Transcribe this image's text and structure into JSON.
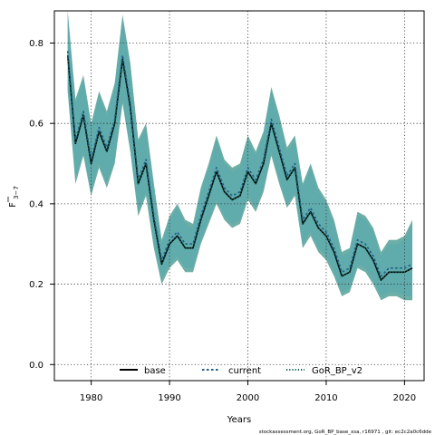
{
  "chart_data": {
    "type": "line",
    "title": "",
    "xlabel": "Years",
    "ylabel": "F",
    "ylabel_sub": "3−7",
    "xlim": [
      1975.3,
      2022.5
    ],
    "ylim": [
      -0.04,
      0.88
    ],
    "xticks": [
      1980,
      1990,
      2000,
      2010,
      2020
    ],
    "yticks": [
      0.0,
      0.2,
      0.4,
      0.6,
      0.8
    ],
    "ytick_labels": [
      "0.0",
      "0.2",
      "0.4",
      "0.6",
      "0.8"
    ],
    "grid": true,
    "legend_position": "bottom-center",
    "x": [
      1977,
      1978,
      1979,
      1980,
      1981,
      1982,
      1983,
      1984,
      1985,
      1986,
      1987,
      1988,
      1989,
      1990,
      1991,
      1992,
      1993,
      1994,
      1995,
      1996,
      1997,
      1998,
      1999,
      2000,
      2001,
      2002,
      2003,
      2004,
      2005,
      2006,
      2007,
      2008,
      2009,
      2010,
      2011,
      2012,
      2013,
      2014,
      2015,
      2016,
      2017,
      2018,
      2019,
      2020,
      2021
    ],
    "series": [
      {
        "name": "base",
        "color": "#000000",
        "dash": "solid",
        "values": [
          0.77,
          0.55,
          0.62,
          0.5,
          0.58,
          0.53,
          0.6,
          0.76,
          0.64,
          0.45,
          0.5,
          0.36,
          0.25,
          0.3,
          0.32,
          0.29,
          0.29,
          0.36,
          0.42,
          0.48,
          0.43,
          0.41,
          0.42,
          0.48,
          0.45,
          0.5,
          0.6,
          0.53,
          0.46,
          0.49,
          0.35,
          0.38,
          0.34,
          0.32,
          0.28,
          0.22,
          0.23,
          0.3,
          0.29,
          0.26,
          0.21,
          0.23,
          0.23,
          0.23,
          0.24
        ],
        "lower": [
          0.68,
          0.45,
          0.52,
          0.42,
          0.49,
          0.44,
          0.5,
          0.65,
          0.53,
          0.37,
          0.42,
          0.29,
          0.2,
          0.24,
          0.26,
          0.23,
          0.23,
          0.3,
          0.35,
          0.4,
          0.36,
          0.34,
          0.35,
          0.41,
          0.38,
          0.43,
          0.52,
          0.45,
          0.39,
          0.42,
          0.29,
          0.32,
          0.28,
          0.26,
          0.22,
          0.17,
          0.18,
          0.24,
          0.23,
          0.2,
          0.16,
          0.17,
          0.17,
          0.16,
          0.16
        ],
        "upper": [
          0.88,
          0.66,
          0.72,
          0.6,
          0.68,
          0.63,
          0.7,
          0.87,
          0.75,
          0.56,
          0.6,
          0.45,
          0.31,
          0.37,
          0.4,
          0.36,
          0.35,
          0.44,
          0.5,
          0.57,
          0.51,
          0.49,
          0.5,
          0.57,
          0.53,
          0.58,
          0.69,
          0.62,
          0.54,
          0.57,
          0.45,
          0.5,
          0.44,
          0.41,
          0.36,
          0.28,
          0.29,
          0.38,
          0.37,
          0.34,
          0.28,
          0.31,
          0.31,
          0.32,
          0.36
        ]
      },
      {
        "name": "current",
        "color": "#1f5f8a",
        "dash": "dotted",
        "values": [
          0.78,
          0.56,
          0.63,
          0.51,
          0.59,
          0.54,
          0.61,
          0.77,
          0.65,
          0.46,
          0.51,
          0.37,
          0.26,
          0.31,
          0.33,
          0.3,
          0.3,
          0.37,
          0.43,
          0.49,
          0.44,
          0.42,
          0.43,
          0.49,
          0.46,
          0.51,
          0.61,
          0.54,
          0.47,
          0.5,
          0.36,
          0.39,
          0.35,
          0.33,
          0.29,
          0.23,
          0.24,
          0.31,
          0.3,
          0.27,
          0.22,
          0.24,
          0.24,
          0.24,
          0.25
        ]
      },
      {
        "name": "GoR_BP_v2",
        "color": "#0f5c4e",
        "dash": "dotted",
        "values": [
          0.77,
          0.55,
          0.62,
          0.5,
          0.58,
          0.53,
          0.6,
          0.76,
          0.64,
          0.45,
          0.5,
          0.36,
          0.25,
          0.3,
          0.32,
          0.29,
          0.29,
          0.36,
          0.42,
          0.48,
          0.43,
          0.41,
          0.42,
          0.48,
          0.45,
          0.5,
          0.6,
          0.53,
          0.46,
          0.49,
          0.35,
          0.38,
          0.34,
          0.32,
          0.28,
          0.22,
          0.23,
          0.3,
          0.29,
          0.26,
          0.21,
          0.23,
          0.23,
          0.23,
          0.24
        ]
      }
    ],
    "band_colors": {
      "base": "#808080",
      "current": "#7fa6d6",
      "GoR_BP_v2": "#3aa89a"
    }
  },
  "footer": "stockassessment.org, GoR_BP_base_xsa, r16971 , git: ec2c2a0c6dde"
}
